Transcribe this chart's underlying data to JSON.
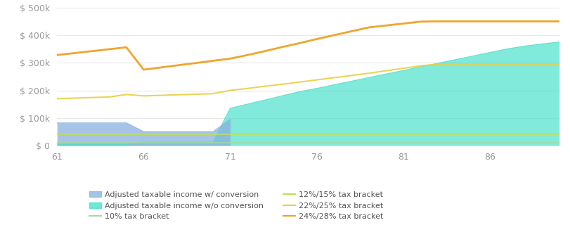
{
  "xlim": [
    61,
    90
  ],
  "ylim": [
    0,
    500000
  ],
  "yticks": [
    0,
    100000,
    200000,
    300000,
    400000,
    500000
  ],
  "ytick_labels": [
    "$ 0",
    "$ 100k",
    "$ 200k",
    "$ 300k",
    "$ 400k",
    "$ 500k"
  ],
  "xticks": [
    61,
    66,
    71,
    76,
    81,
    86
  ],
  "background_color": "#ffffff",
  "grid_color": "#e8e8e8",
  "conv_income": {
    "x": [
      61,
      62,
      63,
      64,
      65,
      66,
      67,
      68,
      69,
      70,
      71
    ],
    "y": [
      82000,
      82000,
      82000,
      82000,
      82000,
      50000,
      50000,
      50000,
      50000,
      50000,
      95000
    ]
  },
  "no_conv_income": {
    "x": [
      61,
      62,
      63,
      64,
      65,
      66,
      67,
      68,
      69,
      70,
      71,
      72,
      73,
      74,
      75,
      76,
      77,
      78,
      79,
      80,
      81,
      82,
      83,
      84,
      85,
      86,
      87,
      88,
      89,
      90
    ],
    "y": [
      5000,
      5000,
      5000,
      5000,
      5000,
      12000,
      12000,
      12000,
      12000,
      12000,
      135000,
      150000,
      165000,
      180000,
      195000,
      207000,
      220000,
      233000,
      246000,
      259000,
      272000,
      285000,
      298000,
      311000,
      324000,
      337000,
      350000,
      360000,
      368000,
      375000
    ]
  },
  "bracket_10": {
    "x": [
      61,
      90
    ],
    "y": [
      9950,
      9950
    ]
  },
  "bracket_12": {
    "x": [
      61,
      90
    ],
    "y": [
      40525,
      40525
    ]
  },
  "bracket_22": {
    "x": [
      61,
      62,
      63,
      64,
      65,
      66,
      67,
      68,
      69,
      70,
      71,
      72,
      73,
      74,
      75,
      76,
      77,
      78,
      79,
      80,
      81,
      82,
      83,
      84,
      85,
      86,
      87,
      88,
      89,
      90
    ],
    "y": [
      170000,
      172000,
      174000,
      176000,
      185000,
      180000,
      182000,
      184000,
      186000,
      188000,
      200000,
      207000,
      215000,
      222000,
      230000,
      238000,
      246000,
      254000,
      262000,
      271000,
      280000,
      289000,
      295000,
      295000,
      295000,
      295000,
      295000,
      295000,
      295000,
      295000
    ]
  },
  "bracket_24": {
    "x": [
      61,
      62,
      63,
      64,
      65,
      66,
      67,
      68,
      69,
      70,
      71,
      72,
      73,
      74,
      75,
      76,
      77,
      78,
      79,
      80,
      81,
      82,
      83,
      84,
      85,
      86,
      87,
      88,
      89,
      90
    ],
    "y": [
      328000,
      335000,
      342000,
      349000,
      356000,
      275000,
      283000,
      291000,
      299000,
      307000,
      315000,
      328000,
      342000,
      357000,
      371000,
      386000,
      400000,
      414000,
      428000,
      435000,
      442000,
      449000,
      450000,
      450000,
      450000,
      450000,
      450000,
      450000,
      450000,
      450000
    ]
  },
  "colors": {
    "conv_income_fill": "#8ab0e0",
    "conv_income_line": "#8ab0e0",
    "no_conv_income_fill": "#40dfc8",
    "no_conv_income_line": "#40dfc8",
    "bracket_10_line": "#a8d8a0",
    "bracket_12_line": "#c0e050",
    "bracket_22_line": "#e8d040",
    "bracket_24_line": "#f0a020"
  },
  "legend": [
    {
      "label": "Adjusted taxable income w/ conversion",
      "color": "#8ab0e0",
      "type": "fill"
    },
    {
      "label": "Adjusted taxable income w/o conversion",
      "color": "#40dfc8",
      "type": "fill"
    },
    {
      "label": "10% tax bracket",
      "color": "#a8d8a0",
      "type": "line"
    },
    {
      "label": "12%/15% tax bracket",
      "color": "#c0e050",
      "type": "line"
    },
    {
      "label": "22%/25% tax bracket",
      "color": "#e8d040",
      "type": "line"
    },
    {
      "label": "24%/28% tax bracket",
      "color": "#f0a020",
      "type": "line"
    }
  ]
}
